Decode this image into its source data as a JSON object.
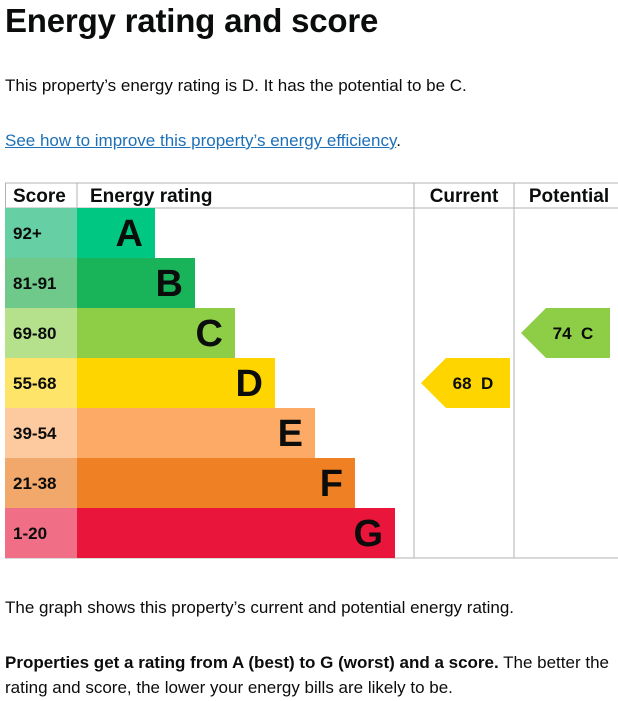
{
  "heading": "Energy rating and score",
  "summary": "This property’s energy rating is D. It has the potential to be C.",
  "improve_link": "See how to improve this property’s energy efficiency",
  "improve_link_suffix": ".",
  "graph_caption": "The graph shows this property’s current and potential energy rating.",
  "explanation_bold": "Properties get a rating from A (best) to G (worst) and a score.",
  "explanation_rest": " The better the rating and score, the lower your energy bills are likely to be.",
  "chart_data": {
    "type": "table",
    "headers": {
      "score": "Score",
      "rating": "Energy rating",
      "current": "Current",
      "potential": "Potential"
    },
    "bands": [
      {
        "score": "92+",
        "letter": "A",
        "color": "#00c781",
        "score_bg": "#67cfa4"
      },
      {
        "score": "81-91",
        "letter": "B",
        "color": "#19b459",
        "score_bg": "#6ec98a"
      },
      {
        "score": "69-80",
        "letter": "C",
        "color": "#8dce46",
        "score_bg": "#b5e08c"
      },
      {
        "score": "55-68",
        "letter": "D",
        "color": "#ffd500",
        "score_bg": "#ffe46a"
      },
      {
        "score": "39-54",
        "letter": "E",
        "color": "#fcaa65",
        "score_bg": "#fdca9f"
      },
      {
        "score": "21-38",
        "letter": "F",
        "color": "#ef8023",
        "score_bg": "#f3a86b"
      },
      {
        "score": "1-20",
        "letter": "G",
        "color": "#e9153b",
        "score_bg": "#f06f86"
      }
    ],
    "current": {
      "score": 68,
      "rating": "D",
      "label": "68  D",
      "color": "#ffd500"
    },
    "potential": {
      "score": 74,
      "rating": "C",
      "label": "74  C",
      "color": "#8dce46"
    }
  }
}
